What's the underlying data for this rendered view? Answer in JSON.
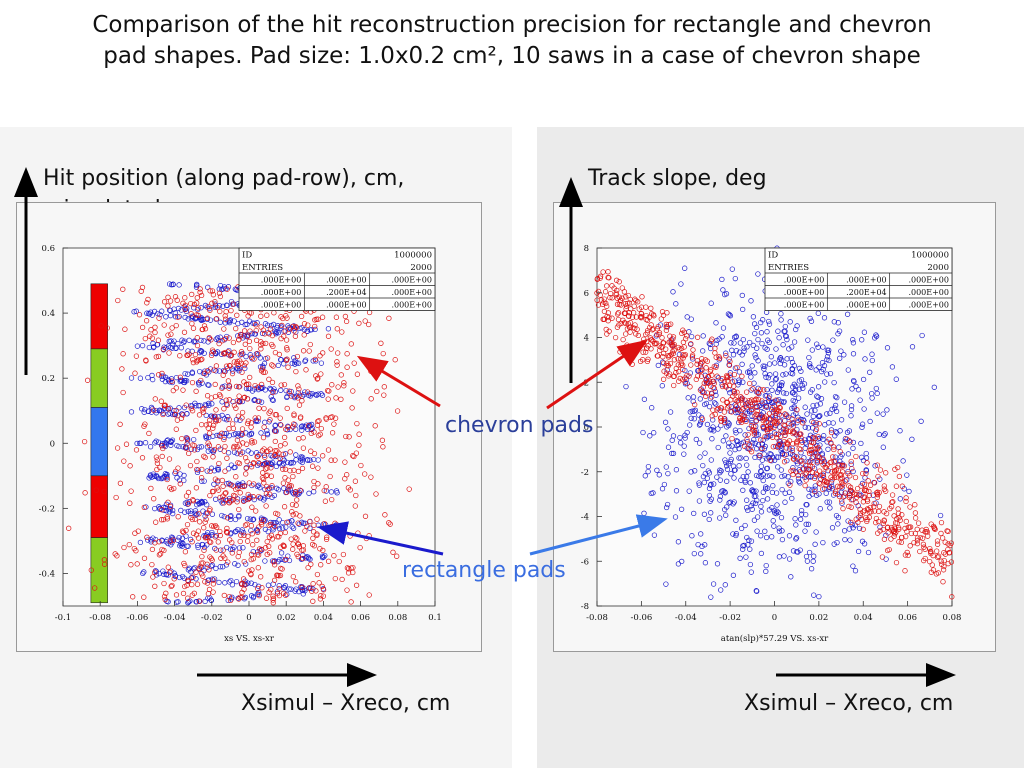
{
  "slide": {
    "title_line1": "Comparison of the hit reconstruction precision for rectangle and chevron",
    "title_line2": "pad shapes. Pad size: 1.0x0.2 cm², 10 saws in a case of chevron shape",
    "left_ylabel_line1": "Hit position (along pad-row), cm,",
    "left_ylabel_line2": "simulated",
    "right_ylabel": "Track slope, deg",
    "left_xlabel": "Xsimul – Xreco, cm",
    "right_xlabel": "Xsimul – Xreco, cm",
    "annot_chevron": "chevron pads",
    "annot_rectangle": "rectangle pads"
  },
  "colors": {
    "rectangle_series": "#1a1acc",
    "chevron_series": "#dd1111",
    "annot_chevron_text": "#2b3f9a",
    "annot_rectangle_text": "#3a6de0",
    "arrow_red": "#dd1111",
    "arrow_blue_left": "#1a1acc",
    "arrow_blue_right": "#3a7ae8",
    "pad_red": "#ee0000",
    "pad_green": "#88cc22",
    "pad_blue": "#3377ee"
  },
  "chart_data": [
    {
      "type": "scatter",
      "caption": "xs VS. xs-xr",
      "xlim": [
        -0.1,
        0.1
      ],
      "ylim": [
        -0.5,
        0.6
      ],
      "x_ticks": [
        "-0.1",
        "-0.08",
        "-0.06",
        "-0.04",
        "-0.02",
        "0",
        "0.02",
        "0.04",
        "0.06",
        "0.08",
        "0.1"
      ],
      "y_ticks": [
        "0.6",
        "0.4",
        "0.2",
        "0",
        "-0.2",
        "-0.4"
      ],
      "stats_box": {
        "rows": [
          [
            "ID",
            "1000000"
          ],
          [
            "ENTRIES",
            "2000"
          ]
        ],
        "grid": [
          [
            ".000E+00",
            ".000E+00",
            ".000E+00"
          ],
          [
            ".000E+00",
            ".200E+04",
            ".000E+00"
          ],
          [
            ".000E+00",
            ".000E+00",
            ".000E+00"
          ]
        ]
      },
      "pad_strip": [
        {
          "color": "pad_red",
          "from": 0.29,
          "to": 0.49
        },
        {
          "color": "pad_green",
          "from": 0.11,
          "to": 0.29
        },
        {
          "color": "pad_blue",
          "from": -0.1,
          "to": 0.11
        },
        {
          "color": "pad_red",
          "from": -0.29,
          "to": -0.1
        },
        {
          "color": "pad_green",
          "from": -0.49,
          "to": -0.29
        }
      ],
      "series": [
        {
          "description": "rectangle pads (blue), chevron saw-tooth pattern",
          "color": "rectangle_series",
          "count": 1000,
          "x_range": [
            -0.07,
            0.05
          ],
          "y_range": [
            -0.49,
            0.49
          ]
        },
        {
          "description": "chevron pads (red), diffuse",
          "color": "chevron_series",
          "count": 1000,
          "x_range": [
            -0.085,
            0.085
          ],
          "y_range": [
            -0.49,
            0.49
          ]
        }
      ]
    },
    {
      "type": "scatter",
      "caption": "atan(slp)*57.29 VS. xs-xr",
      "xlim": [
        -0.08,
        0.08
      ],
      "ylim": [
        -8,
        8
      ],
      "x_ticks": [
        "-0.08",
        "-0.06",
        "-0.04",
        "-0.02",
        "0",
        "0.02",
        "0.04",
        "0.06",
        "0.08"
      ],
      "y_ticks": [
        "8",
        "6",
        "4",
        "2",
        "0",
        "-2",
        "-4",
        "-6",
        "-8"
      ],
      "stats_box": {
        "rows": [
          [
            "ID",
            "1000000"
          ],
          [
            "ENTRIES",
            "2000"
          ]
        ],
        "grid": [
          [
            ".000E+00",
            ".000E+00",
            ".000E+00"
          ],
          [
            ".000E+00",
            ".200E+04",
            ".000E+00"
          ],
          [
            ".000E+00",
            ".000E+00",
            ".000E+00"
          ]
        ]
      },
      "series": [
        {
          "description": "rectangle pads (blue), broad cloud",
          "color": "rectangle_series",
          "count": 1000,
          "x_range": [
            -0.055,
            0.06
          ],
          "y_range": [
            -7.5,
            8
          ]
        },
        {
          "description": "chevron pads (red), diagonal band",
          "color": "chevron_series",
          "count": 1000,
          "x_range": [
            -0.08,
            0.08
          ],
          "y_range": [
            -7.8,
            7
          ],
          "slope_per_unit_x": -75
        }
      ]
    }
  ]
}
